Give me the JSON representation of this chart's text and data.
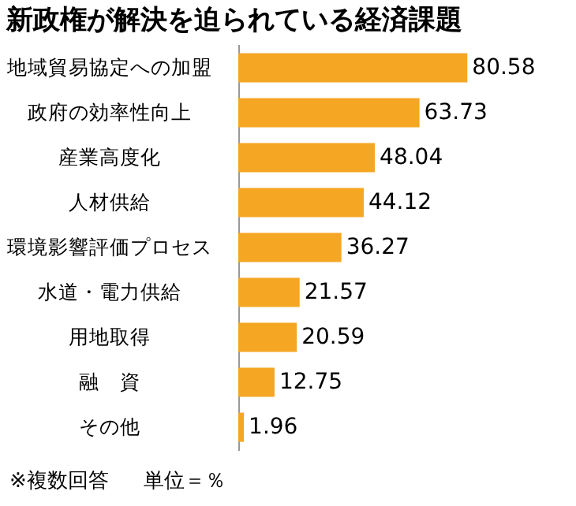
{
  "chart_data": {
    "type": "bar",
    "orientation": "horizontal",
    "title": "新政権が解決を迫られている経済課題",
    "categories": [
      "地域貿易協定への加盟",
      "政府の効率性向上",
      "産業高度化",
      "人材供給",
      "環境影響評価プロセス",
      "水道・電力供給",
      "用地取得",
      "融　資",
      "その他"
    ],
    "values": [
      80.58,
      63.73,
      48.04,
      44.12,
      36.27,
      21.57,
      20.59,
      12.75,
      1.96
    ],
    "color": "#f5a623",
    "data_labels": true,
    "annotations": [
      "※複数回答",
      "単位＝％"
    ]
  }
}
